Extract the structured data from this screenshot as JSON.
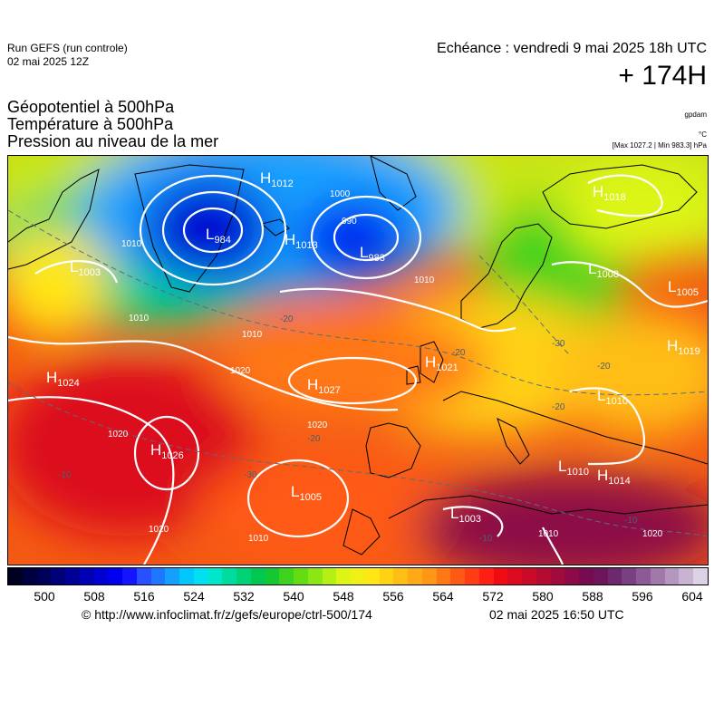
{
  "header": {
    "run_line1": "Run GEFS (run controle)",
    "run_line2": "02 mai 2025 12Z",
    "echeance": "Echéance : vendredi 9 mai 2025 18h UTC",
    "lead_time": "+ 174H"
  },
  "fields": {
    "line1": "Géopotentiel à 500hPa",
    "line2": "Température à 500hPa",
    "line3": "Pression au niveau de la mer"
  },
  "units": {
    "geopotential": "gpdam",
    "temperature": "°C",
    "pressure": "[Max 1027.2 | Min 983.3] hPa"
  },
  "colors": {
    "isobar": "#ffffff",
    "isotherm": "#5a6e7a",
    "coast": "#000000",
    "label_high": "#ffffff",
    "label_low": "#ffffff"
  },
  "colorbar": {
    "colors": [
      "#000020",
      "#000040",
      "#00005a",
      "#000078",
      "#000096",
      "#0000b4",
      "#0000d2",
      "#0000f0",
      "#1414ff",
      "#2850ff",
      "#1e78ff",
      "#14a0ff",
      "#00c8ff",
      "#00e0f0",
      "#00e6c8",
      "#00dca0",
      "#00d278",
      "#00c850",
      "#14c832",
      "#3cd21e",
      "#64dc14",
      "#8ce614",
      "#b4f014",
      "#dcf514",
      "#f0f014",
      "#ffe614",
      "#ffd214",
      "#ffbe14",
      "#ffaa14",
      "#ff9614",
      "#ff7814",
      "#ff5a14",
      "#ff3c14",
      "#ff1e14",
      "#f00a14",
      "#dc0a1e",
      "#c80a28",
      "#b40a32",
      "#a00a3c",
      "#8c0a46",
      "#780a50",
      "#6e145a",
      "#6e286e",
      "#784082",
      "#8c5a96",
      "#a078aa",
      "#b496be",
      "#c8b4d2",
      "#dcd2e6"
    ],
    "ticks": [
      "500",
      "508",
      "516",
      "524",
      "532",
      "540",
      "548",
      "556",
      "564",
      "572",
      "580",
      "588",
      "596",
      "604"
    ]
  },
  "map": {
    "highs": [
      {
        "letter": "H",
        "value": "1012"
      },
      {
        "letter": "H",
        "value": "1013"
      },
      {
        "letter": "H",
        "value": "1024"
      },
      {
        "letter": "H",
        "value": "1027"
      },
      {
        "letter": "H",
        "value": "1026"
      },
      {
        "letter": "H",
        "value": "1021"
      },
      {
        "letter": "H",
        "value": "1019"
      },
      {
        "letter": "H",
        "value": "1014"
      },
      {
        "letter": "H",
        "value": "1018"
      }
    ],
    "lows": [
      {
        "letter": "L",
        "value": "984"
      },
      {
        "letter": "L",
        "value": "983"
      },
      {
        "letter": "L",
        "value": "1003"
      },
      {
        "letter": "L",
        "value": "1008"
      },
      {
        "letter": "L",
        "value": "1005"
      },
      {
        "letter": "L",
        "value": "1005"
      },
      {
        "letter": "L",
        "value": "1003"
      },
      {
        "letter": "L",
        "value": "1010"
      },
      {
        "letter": "L",
        "value": "1010"
      }
    ],
    "isobar_labels": [
      "1010",
      "1020",
      "1020",
      "1000",
      "990",
      "1010",
      "1010",
      "1010",
      "1020",
      "1020",
      "1010",
      "1010",
      "1020"
    ],
    "isotherm_labels": [
      "-20",
      "-20",
      "-20",
      "-30",
      "-20",
      "-10",
      "-30",
      "-10",
      "-20",
      "-10"
    ]
  },
  "footer": {
    "source": "© http://www.infoclimat.fr/z/gefs/europe/ctrl-500/174",
    "generated": "02 mai 2025 16:50 UTC"
  }
}
